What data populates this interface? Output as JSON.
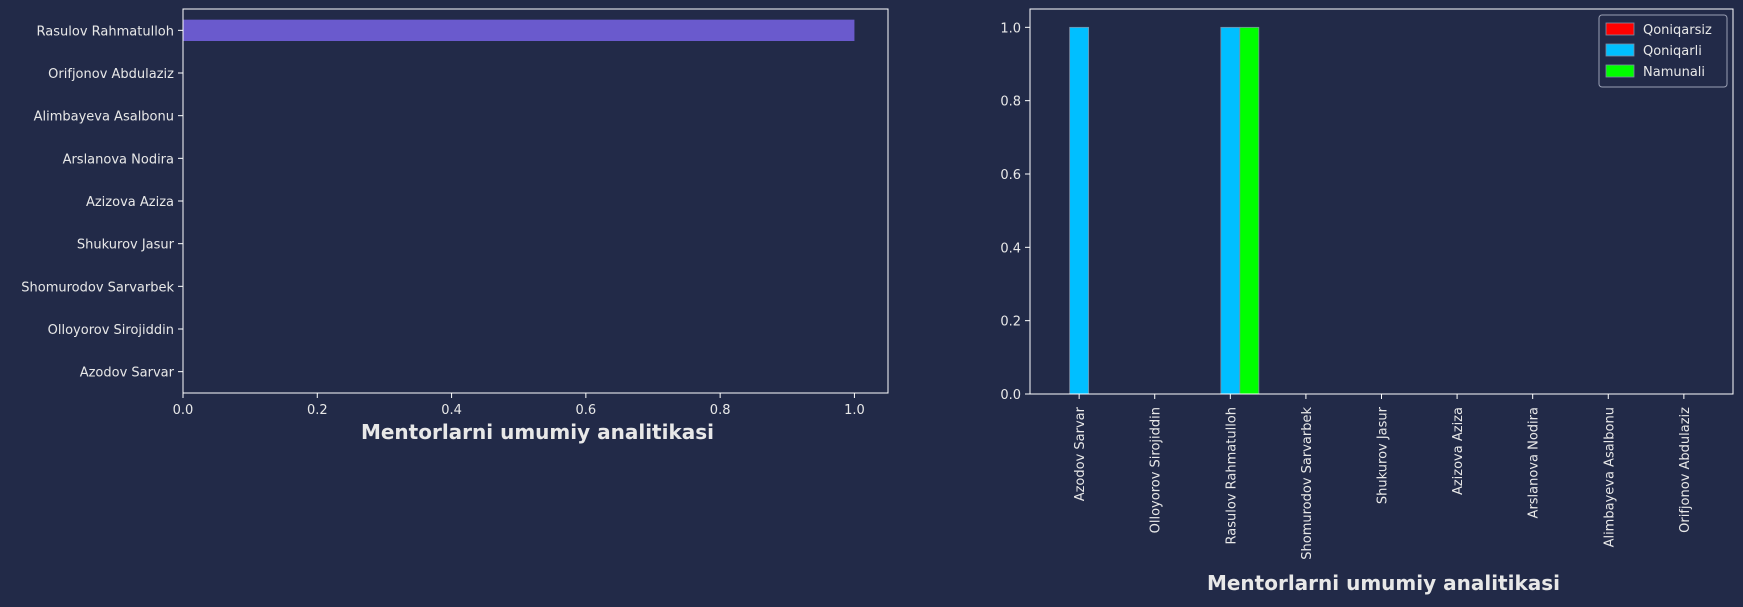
{
  "colors": {
    "background": "#222a48",
    "axis": "#ffffff",
    "text": "#e8e8e8",
    "barh": "#6a5acd"
  },
  "chart_data": [
    {
      "type": "bar",
      "orientation": "horizontal",
      "xlabel": "Mentorlarni umumiy analitikasi",
      "xlim": [
        0,
        1.05
      ],
      "xticks": [
        "0.0",
        "0.2",
        "0.4",
        "0.6",
        "0.8",
        "1.0"
      ],
      "categories": [
        "Azodov Sarvar",
        "Olloyorov Sirojiddin",
        "Shomurodov Sarvarbek",
        "Shukurov Jasur",
        "Azizova Aziza",
        "Arslanova Nodira",
        "Alimbayeva Asalbonu",
        "Orifjonov Abdulaziz",
        "Rasulov Rahmatulloh"
      ],
      "values": [
        0,
        0,
        0,
        0,
        0,
        0,
        0,
        0,
        1
      ],
      "color": "#6a5acd",
      "grid": false
    },
    {
      "type": "bar",
      "orientation": "vertical",
      "xlabel": "Mentorlarni umumiy analitikasi",
      "ylim": [
        0,
        1.05
      ],
      "yticks": [
        "0.0",
        "0.2",
        "0.4",
        "0.6",
        "0.8",
        "1.0"
      ],
      "categories": [
        "Azodov Sarvar",
        "Olloyorov Sirojiddin",
        "Rasulov Rahmatulloh",
        "Shomurodov Sarvarbek",
        "Shukurov Jasur",
        "Azizova Aziza",
        "Arslanova Nodira",
        "Alimbayeva Asalbonu",
        "Orifjonov Abdulaziz"
      ],
      "series": [
        {
          "name": "Qoniqarsiz",
          "color": "#ff0000",
          "values": [
            0,
            0,
            0,
            0,
            0,
            0,
            0,
            0,
            0
          ]
        },
        {
          "name": "Qoniqarli",
          "color": "#00bfff",
          "values": [
            1,
            0,
            1,
            0,
            0,
            0,
            0,
            0,
            0
          ]
        },
        {
          "name": "Namunali",
          "color": "#00ff00",
          "values": [
            0,
            0,
            1,
            0,
            0,
            0,
            0,
            0,
            0
          ]
        }
      ],
      "legend": "top-right",
      "grid": false
    }
  ]
}
